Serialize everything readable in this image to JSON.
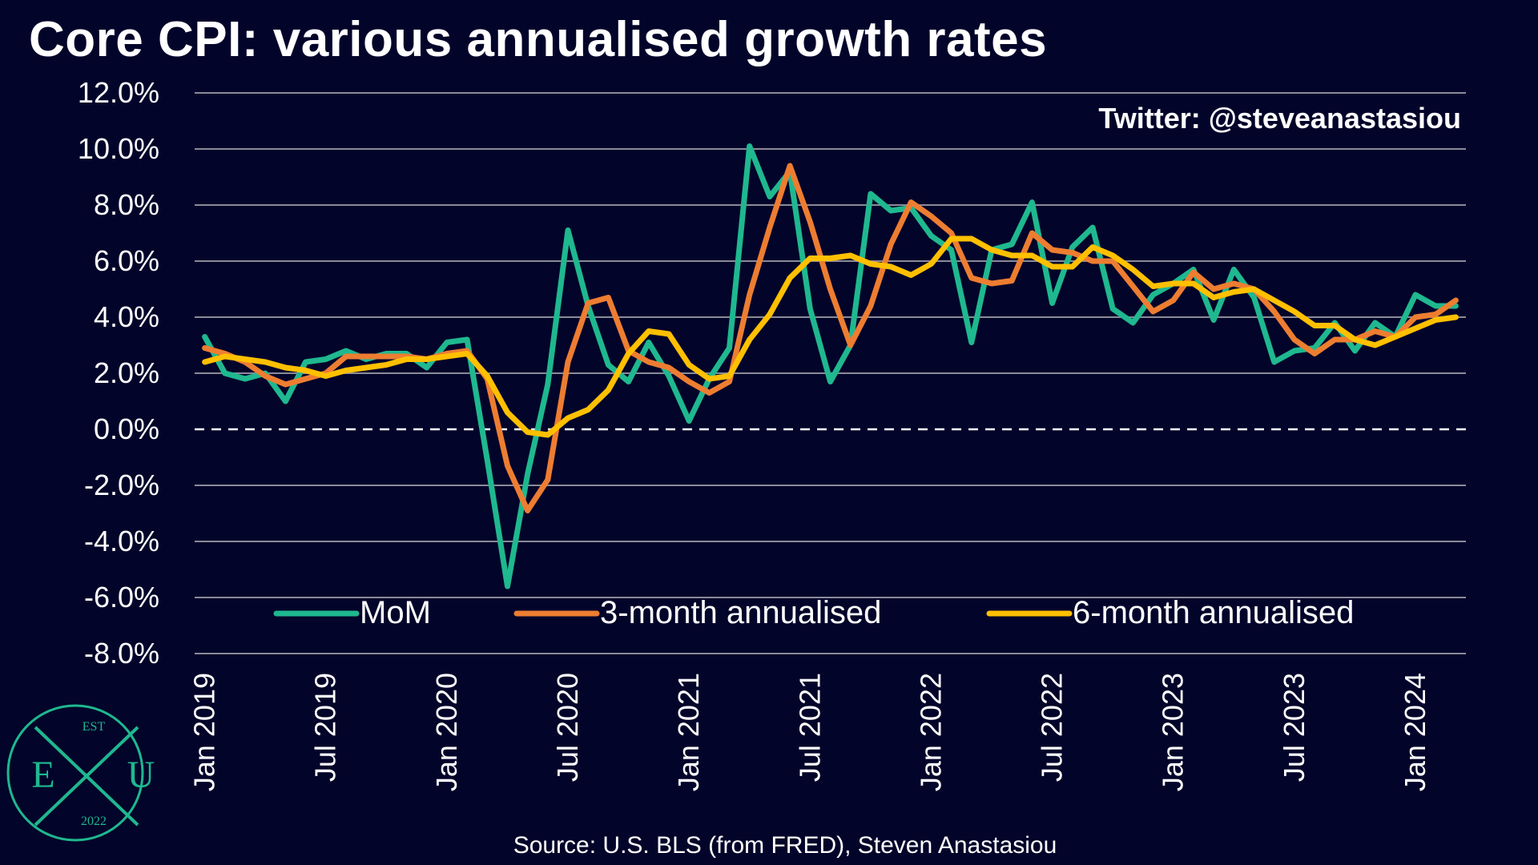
{
  "title": "Core CPI: various annualised growth rates",
  "credit": "Twitter: @steveanastasiou",
  "source": "Source: U.S. BLS (from FRED), Steven Anastasiou",
  "logo": {
    "top": "EST",
    "left": "E",
    "right": "U",
    "bottom": "2022"
  },
  "colors": {
    "background": "#03042a",
    "mom": "#1fb88f",
    "three_month": "#ed7d31",
    "six_month": "#ffc000",
    "grid": "#8a8a9a"
  },
  "chart_data": {
    "type": "line",
    "ylim": [
      -8,
      12
    ],
    "yticks": [
      "12.0%",
      "10.0%",
      "8.0%",
      "6.0%",
      "4.0%",
      "2.0%",
      "0.0%",
      "-2.0%",
      "-4.0%",
      "-6.0%",
      "-8.0%"
    ],
    "zero_line": "dashed",
    "grid": true,
    "legend_position": "bottom-inside",
    "x_tick_labels": [
      "Jan 2019",
      "Jul 2019",
      "Jan 2020",
      "Jul 2020",
      "Jan 2021",
      "Jul 2021",
      "Jan 2022",
      "Jul 2022",
      "Jan 2023",
      "Jul 2023",
      "Jan 2024"
    ],
    "x_start": "Jan 2019",
    "x_end": "May 2024",
    "series": [
      {
        "name": "MoM",
        "color": "#1fb88f",
        "values": [
          3.3,
          2.0,
          1.8,
          2.0,
          1.0,
          2.4,
          2.5,
          2.8,
          2.5,
          2.7,
          2.7,
          2.2,
          3.1,
          3.2,
          -1.1,
          -5.6,
          -1.6,
          1.6,
          7.1,
          4.4,
          2.3,
          1.7,
          3.1,
          1.9,
          0.3,
          1.8,
          2.9,
          10.1,
          8.3,
          9.2,
          4.3,
          1.7,
          3.0,
          8.4,
          7.8,
          7.9,
          6.9,
          6.4,
          3.1,
          6.4,
          6.6,
          8.1,
          4.5,
          6.5,
          7.2,
          4.3,
          3.8,
          4.8,
          5.2,
          5.7,
          3.9,
          5.7,
          4.7,
          2.4,
          2.8,
          2.9,
          3.8,
          2.8,
          3.8,
          3.3,
          4.8,
          4.4,
          4.4
        ]
      },
      {
        "name": "3-month annualised",
        "color": "#ed7d31",
        "values": [
          2.9,
          2.7,
          2.4,
          1.9,
          1.6,
          1.8,
          2.0,
          2.6,
          2.6,
          2.6,
          2.6,
          2.5,
          2.7,
          2.8,
          1.8,
          -1.3,
          -2.9,
          -1.8,
          2.4,
          4.5,
          4.7,
          2.8,
          2.4,
          2.2,
          1.7,
          1.3,
          1.7,
          4.8,
          7.2,
          9.4,
          7.4,
          5.0,
          3.0,
          4.4,
          6.6,
          8.1,
          7.6,
          7.0,
          5.4,
          5.2,
          5.3,
          7.0,
          6.4,
          6.3,
          6.0,
          6.0,
          5.1,
          4.2,
          4.6,
          5.6,
          5.0,
          5.2,
          5.0,
          4.2,
          3.2,
          2.7,
          3.2,
          3.2,
          3.5,
          3.3,
          4.0,
          4.1,
          4.6
        ]
      },
      {
        "name": "6-month annualised",
        "color": "#ffc000",
        "values": [
          2.4,
          2.6,
          2.5,
          2.4,
          2.2,
          2.1,
          1.9,
          2.1,
          2.2,
          2.3,
          2.5,
          2.5,
          2.6,
          2.7,
          1.9,
          0.6,
          -0.1,
          -0.2,
          0.4,
          0.7,
          1.4,
          2.7,
          3.5,
          3.4,
          2.3,
          1.8,
          1.9,
          3.2,
          4.1,
          5.4,
          6.1,
          6.1,
          6.2,
          5.9,
          5.8,
          5.5,
          5.9,
          6.8,
          6.8,
          6.4,
          6.2,
          6.2,
          5.8,
          5.8,
          6.5,
          6.2,
          5.7,
          5.1,
          5.2,
          5.2,
          4.7,
          4.9,
          5.0,
          4.6,
          4.2,
          3.7,
          3.7,
          3.2,
          3.0,
          3.3,
          3.6,
          3.9,
          4.0
        ]
      }
    ]
  }
}
